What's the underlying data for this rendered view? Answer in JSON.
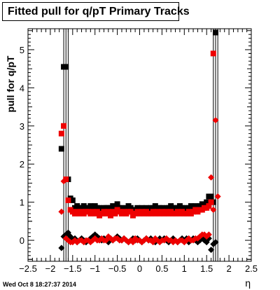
{
  "title": "Fitted pull for q/pT  Primary Tracks",
  "datestamp": "Wed Oct  8 18:27:37 2014",
  "colors": {
    "black": "#000000",
    "red": "#ee0000"
  },
  "chart_data": {
    "type": "scatter",
    "title": "Fitted pull for q/pT  Primary Tracks",
    "xlabel": "η",
    "ylabel": "pull for q/pT",
    "xlim": [
      -2.5,
      2.5
    ],
    "ylim": [
      -0.55,
      5.55
    ],
    "xticks": [
      -2.5,
      -2,
      -1.5,
      -1,
      -0.5,
      0,
      0.5,
      1,
      1.5,
      2,
      2.5
    ],
    "xtick_labels": [
      "−2.5",
      "−2",
      "−1.5",
      "−1",
      "−0.5",
      "0",
      "0.5",
      "1",
      "1.5",
      "2",
      "2.5"
    ],
    "yticks": [
      0,
      1,
      2,
      3,
      4,
      5
    ],
    "ytick_labels": [
      "0",
      "1",
      "2",
      "3",
      "4",
      "5"
    ],
    "grid": false,
    "legend": false,
    "series": [
      {
        "marker": "square",
        "color": "#000000",
        "x": [
          -1.75,
          -1.7,
          -1.65,
          -1.6,
          -1.55,
          -1.5,
          -1.45,
          -1.4,
          -1.35,
          -1.3,
          -1.25,
          -1.2,
          -1.15,
          -1.1,
          -1.05,
          -1,
          -0.95,
          -0.9,
          -0.85,
          -0.8,
          -0.75,
          -0.7,
          -0.65,
          -0.6,
          -0.55,
          -0.5,
          -0.45,
          -0.4,
          -0.35,
          -0.3,
          -0.25,
          -0.2,
          -0.15,
          -0.1,
          -0.05,
          0,
          0.05,
          0.1,
          0.15,
          0.2,
          0.25,
          0.3,
          0.35,
          0.4,
          0.45,
          0.5,
          0.55,
          0.6,
          0.65,
          0.7,
          0.75,
          0.8,
          0.85,
          0.9,
          0.95,
          1,
          1.05,
          1.1,
          1.15,
          1.2,
          1.25,
          1.3,
          1.35,
          1.4,
          1.45,
          1.5,
          1.55,
          1.6,
          1.65,
          1.7
        ],
        "values": [
          2.4,
          4.55,
          4.55,
          1.6,
          1.1,
          1.05,
          0.85,
          0.9,
          0.85,
          0.85,
          0.9,
          0.85,
          0.85,
          0.9,
          0.85,
          0.9,
          0.85,
          0.85,
          0.8,
          0.85,
          0.85,
          0.85,
          0.85,
          0.9,
          0.85,
          0.95,
          0.85,
          0.85,
          0.8,
          0.85,
          0.9,
          0.85,
          0.8,
          0.75,
          0.85,
          0.8,
          0.85,
          0.8,
          0.85,
          0.8,
          0.85,
          0.85,
          0.9,
          0.8,
          0.85,
          0.85,
          0.8,
          0.85,
          0.85,
          0.9,
          0.85,
          0.85,
          0.85,
          0.9,
          0.85,
          0.85,
          0.8,
          0.85,
          0.9,
          0.85,
          0.9,
          0.85,
          0.9,
          0.95,
          0.9,
          1.0,
          1.15,
          1.15,
          1.0,
          5.45
        ]
      },
      {
        "marker": "square",
        "color": "#ee0000",
        "x": [
          -1.75,
          -1.7,
          -1.65,
          -1.6,
          -1.55,
          -1.5,
          -1.45,
          -1.4,
          -1.35,
          -1.3,
          -1.25,
          -1.2,
          -1.15,
          -1.1,
          -1.05,
          -1,
          -0.95,
          -0.9,
          -0.85,
          -0.8,
          -0.75,
          -0.7,
          -0.65,
          -0.6,
          -0.55,
          -0.5,
          -0.45,
          -0.4,
          -0.35,
          -0.3,
          -0.25,
          -0.2,
          -0.15,
          -0.1,
          -0.05,
          0,
          0.05,
          0.1,
          0.15,
          0.2,
          0.25,
          0.3,
          0.35,
          0.4,
          0.45,
          0.5,
          0.55,
          0.6,
          0.65,
          0.7,
          0.75,
          0.8,
          0.85,
          0.9,
          0.95,
          1,
          1.05,
          1.1,
          1.15,
          1.2,
          1.25,
          1.3,
          1.35,
          1.4,
          1.45,
          1.5,
          1.55,
          1.6,
          1.65
        ],
        "values": [
          2.8,
          3.0,
          1.6,
          1.05,
          0.8,
          0.75,
          0.7,
          0.75,
          0.7,
          0.75,
          0.7,
          0.75,
          0.75,
          0.7,
          0.75,
          0.7,
          0.75,
          0.65,
          0.7,
          0.75,
          0.7,
          0.75,
          0.65,
          0.75,
          0.7,
          0.8,
          0.75,
          0.7,
          0.75,
          0.7,
          0.75,
          0.75,
          0.65,
          0.7,
          0.75,
          0.7,
          0.75,
          0.7,
          0.75,
          0.7,
          0.7,
          0.75,
          0.7,
          0.75,
          0.7,
          0.75,
          0.7,
          0.75,
          0.7,
          0.75,
          0.7,
          0.7,
          0.75,
          0.7,
          0.75,
          0.7,
          0.7,
          0.75,
          0.7,
          0.75,
          0.8,
          0.75,
          0.8,
          0.8,
          0.85,
          0.85,
          0.9,
          1.0,
          4.9
        ]
      },
      {
        "marker": "diamond",
        "color": "#000000",
        "x": [
          -1.75,
          -1.7,
          -1.65,
          -1.6,
          -1.55,
          -1.5,
          -1.45,
          -1.4,
          -1.35,
          -1.3,
          -1.25,
          -1.2,
          -1.15,
          -1.1,
          -1.05,
          -1,
          -0.95,
          -0.9,
          -0.85,
          -0.8,
          -0.75,
          -0.7,
          -0.65,
          -0.6,
          -0.55,
          -0.5,
          -0.45,
          -0.4,
          -0.35,
          -0.3,
          -0.25,
          -0.2,
          -0.15,
          -0.1,
          -0.05,
          0,
          0.05,
          0.1,
          0.15,
          0.2,
          0.25,
          0.3,
          0.35,
          0.4,
          0.45,
          0.5,
          0.55,
          0.6,
          0.65,
          0.7,
          0.75,
          0.8,
          0.85,
          0.9,
          0.95,
          1,
          1.05,
          1.1,
          1.15,
          1.2,
          1.25,
          1.3,
          1.35,
          1.4,
          1.45,
          1.5,
          1.55,
          1.6,
          1.65,
          1.7
        ],
        "values": [
          -0.2,
          0.1,
          0.15,
          0.2,
          0.1,
          0.0,
          0.05,
          -0.05,
          0.0,
          0.05,
          0.0,
          -0.05,
          0.0,
          0.05,
          0.1,
          0.15,
          0.1,
          0.05,
          0.0,
          0.05,
          0.0,
          -0.05,
          0.05,
          0.0,
          0.05,
          0.1,
          0.05,
          0.0,
          0.05,
          0.0,
          -0.05,
          0.0,
          0.05,
          0.0,
          0.05,
          0.0,
          -0.05,
          0.0,
          0.05,
          0.0,
          0.05,
          0.0,
          -0.05,
          0.0,
          0.05,
          0.0,
          0.05,
          0.0,
          -0.05,
          0.0,
          0.05,
          0.0,
          -0.05,
          0.0,
          0.05,
          0.0,
          0.05,
          -0.05,
          0.0,
          0.05,
          0.0,
          -0.05,
          0.0,
          0.05,
          0.0,
          -0.05,
          0.05,
          -0.25,
          -0.1,
          -0.05
        ]
      },
      {
        "marker": "diamond",
        "color": "#ee0000",
        "x": [
          -1.75,
          -1.7,
          -1.65,
          -1.6,
          -1.55,
          -1.5,
          -1.45,
          -1.4,
          -1.35,
          -1.3,
          -1.25,
          -1.2,
          -1.15,
          -1.1,
          -1.05,
          -1,
          -0.95,
          -0.9,
          -0.85,
          -0.8,
          -0.75,
          -0.7,
          -0.65,
          -0.6,
          -0.55,
          -0.5,
          -0.45,
          -0.4,
          -0.35,
          -0.3,
          -0.25,
          -0.2,
          -0.15,
          -0.1,
          -0.05,
          0,
          0.05,
          0.1,
          0.15,
          0.2,
          0.25,
          0.3,
          0.35,
          0.4,
          0.45,
          0.5,
          0.55,
          0.6,
          0.65,
          0.7,
          0.75,
          0.8,
          0.85,
          0.9,
          0.95,
          1,
          1.05,
          1.1,
          1.15,
          1.2,
          1.25,
          1.3,
          1.35,
          1.4,
          1.45,
          1.5,
          1.55,
          1.6,
          1.65,
          1.7,
          1.75
        ],
        "values": [
          0.75,
          1.55,
          0.05,
          0.0,
          -0.05,
          -0.05,
          0.0,
          -0.05,
          0.0,
          0.0,
          -0.05,
          0.0,
          0.0,
          -0.05,
          0.0,
          0.05,
          0.0,
          0.0,
          0.05,
          0.0,
          0.0,
          0.1,
          0.05,
          0.0,
          0.05,
          0.05,
          0.0,
          0.0,
          0.05,
          0.0,
          -0.05,
          0.0,
          -0.05,
          0.05,
          0.0,
          0.0,
          -0.05,
          0.0,
          0.05,
          0.0,
          0.0,
          -0.05,
          0.05,
          0.0,
          -0.05,
          0.0,
          0.0,
          0.05,
          0.0,
          0.0,
          -0.05,
          0.0,
          -0.05,
          0.0,
          0.0,
          -0.05,
          0.0,
          0.05,
          0.0,
          0.0,
          0.05,
          0.05,
          0.1,
          0.15,
          0.15,
          0.1,
          0.15,
          1.65,
          0.8,
          3.15,
          1.15
        ]
      }
    ],
    "vertical_lines_at_x": [
      -1.7,
      -1.65,
      -1.6,
      1.65,
      1.7,
      1.75
    ]
  }
}
